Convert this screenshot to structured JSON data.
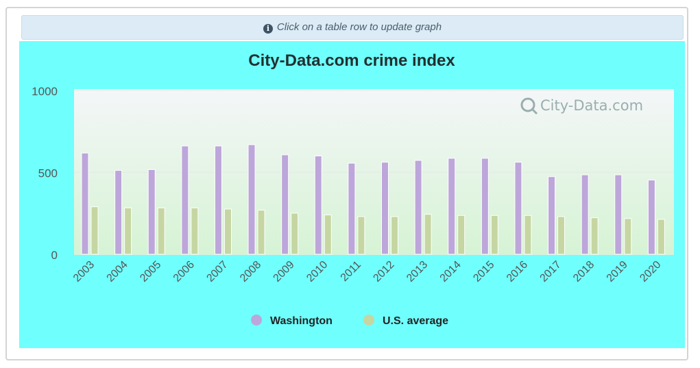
{
  "notice": {
    "icon": "info-circle-icon",
    "text": "Click on a table row to update graph"
  },
  "chart_data": {
    "type": "bar",
    "title": "City-Data.com crime index",
    "watermark": "City-Data.com",
    "xlabel": "",
    "ylabel": "",
    "ylim": [
      0,
      1000
    ],
    "yticks": [
      0,
      500,
      1000
    ],
    "grid": true,
    "legend_position": "bottom",
    "categories": [
      "2003",
      "2004",
      "2005",
      "2006",
      "2007",
      "2008",
      "2009",
      "2010",
      "2011",
      "2012",
      "2013",
      "2014",
      "2015",
      "2016",
      "2017",
      "2018",
      "2019",
      "2020"
    ],
    "series": [
      {
        "name": "Washington",
        "color": "#bda6da",
        "values": [
          618,
          512,
          517,
          661,
          661,
          669,
          607,
          600,
          556,
          562,
          573,
          586,
          586,
          562,
          474,
          485,
          485,
          453
        ]
      },
      {
        "name": "U.S. average",
        "color": "#c6d6a2",
        "values": [
          290,
          283,
          283,
          283,
          276,
          269,
          251,
          240,
          230,
          230,
          244,
          237,
          237,
          237,
          230,
          223,
          218,
          213
        ]
      }
    ],
    "background_color": "#6ffffd"
  }
}
